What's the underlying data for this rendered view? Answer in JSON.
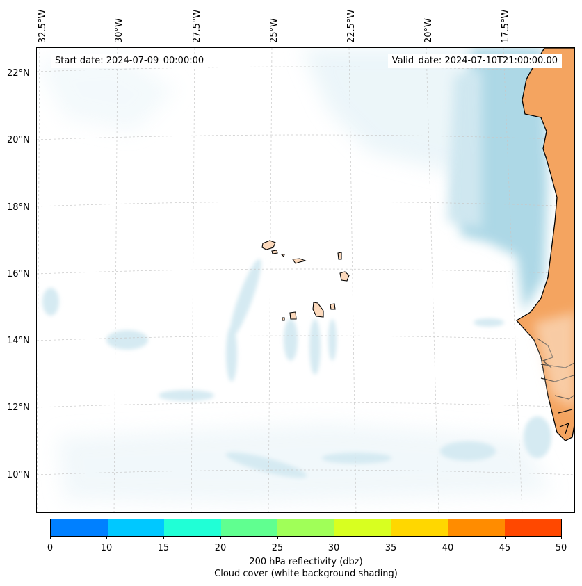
{
  "map": {
    "start_date": "Start date: 2024-07-09_00:00:00",
    "valid_date": "Valid_date: 2024-07-10T21:00:00.00",
    "lon_labels": [
      "32.5°W",
      "30°W",
      "27.5°W",
      "25°W",
      "22.5°W",
      "20°W",
      "17.5°W"
    ],
    "lat_labels": [
      "22°N",
      "20°N",
      "18°N",
      "16°N",
      "14°N",
      "12°N",
      "10°N"
    ],
    "colors": {
      "land": "#f4a460",
      "island": "#fcd9bc",
      "cloud": "#add8e6",
      "cloud_light": "#dceef5",
      "coast": "#000000",
      "grid": "#c8c8c8"
    }
  },
  "colorbar": {
    "ticks": [
      "0",
      "10",
      "15",
      "20",
      "25",
      "30",
      "35",
      "40",
      "45",
      "50"
    ],
    "colors": [
      "#0080ff",
      "#00c8ff",
      "#20ffd6",
      "#60ff90",
      "#a0ff58",
      "#d8ff20",
      "#ffd700",
      "#ff8c00",
      "#ff4800"
    ],
    "label_line1": "200 hPa reflectivity (dbz)",
    "label_line2": "Cloud cover (white background shading)"
  }
}
